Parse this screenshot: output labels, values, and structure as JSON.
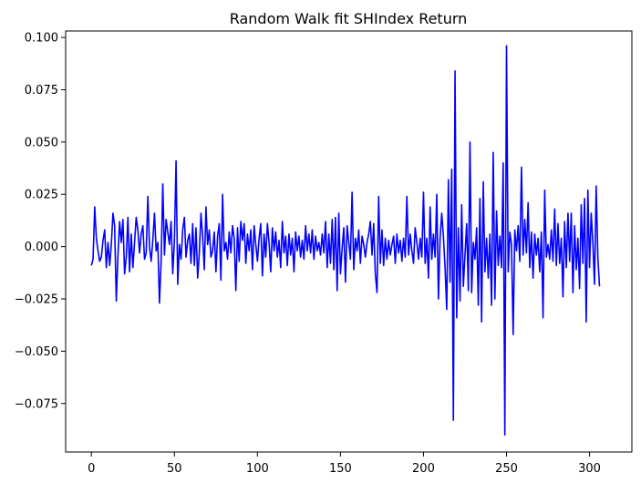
{
  "chart_data": {
    "type": "line",
    "title": "Random Walk fit SHIndex Return",
    "xlabel": "",
    "ylabel": "",
    "xlim": [
      -15.5,
      325.5
    ],
    "ylim": [
      -0.0982,
      0.1031
    ],
    "x_ticks": [
      0,
      50,
      100,
      150,
      200,
      250,
      300
    ],
    "x_tick_labels": [
      "0",
      "50",
      "100",
      "150",
      "200",
      "250",
      "300"
    ],
    "y_ticks": [
      0.1,
      0.075,
      0.05,
      0.025,
      0.0,
      -0.025,
      -0.05,
      -0.075
    ],
    "y_tick_labels": [
      "0.100",
      "0.075",
      "0.050",
      "0.025",
      "0.000",
      "−0.025",
      "−0.050",
      "−0.075"
    ],
    "grid": false,
    "legend": "none",
    "series": [
      {
        "color": "#0000ff",
        "x_start": 0,
        "x_step": 1,
        "values": [
          -0.009,
          -0.006,
          0.019,
          0.004,
          -0.002,
          -0.007,
          -0.005,
          0.003,
          0.008,
          -0.01,
          0.002,
          -0.009,
          0.001,
          0.016,
          0.01,
          -0.026,
          -0.004,
          0.012,
          0.002,
          0.013,
          -0.013,
          -0.005,
          0.014,
          -0.012,
          0.006,
          -0.01,
          0.002,
          0.014,
          0.008,
          -0.003,
          0.006,
          0.01,
          -0.006,
          -0.003,
          0.024,
          0.0,
          -0.007,
          0.003,
          0.016,
          -0.002,
          0.002,
          -0.027,
          -0.007,
          0.03,
          -0.004,
          0.013,
          0.007,
          0.001,
          0.012,
          -0.013,
          0.003,
          0.041,
          -0.018,
          0.001,
          -0.006,
          0.008,
          0.014,
          -0.005,
          0.003,
          0.006,
          -0.008,
          0.011,
          -0.009,
          0.009,
          -0.015,
          -0.003,
          0.016,
          0.005,
          -0.011,
          0.019,
          0.001,
          0.008,
          -0.005,
          -0.002,
          0.007,
          -0.012,
          0.005,
          0.011,
          -0.016,
          0.025,
          -0.002,
          0.002,
          -0.006,
          0.007,
          -0.003,
          0.01,
          0.004,
          -0.021,
          0.009,
          -0.007,
          0.012,
          0.003,
          0.011,
          -0.008,
          0.006,
          -0.002,
          0.008,
          -0.011,
          0.01,
          0.001,
          -0.007,
          0.004,
          0.011,
          -0.014,
          0.006,
          -0.005,
          0.011,
          0.002,
          -0.012,
          0.009,
          -0.002,
          0.007,
          -0.005,
          0.003,
          -0.01,
          0.012,
          -0.003,
          0.005,
          -0.009,
          0.006,
          -0.004,
          0.004,
          -0.012,
          0.007,
          -0.002,
          0.005,
          -0.005,
          0.003,
          -0.006,
          0.01,
          -0.002,
          0.006,
          -0.003,
          0.008,
          -0.006,
          0.005,
          -0.002,
          0.002,
          -0.004,
          0.006,
          -0.003,
          0.012,
          -0.01,
          0.006,
          -0.008,
          0.013,
          -0.011,
          0.014,
          -0.021,
          0.016,
          -0.013,
          -0.001,
          0.009,
          -0.017,
          0.01,
          0.002,
          -0.006,
          0.026,
          -0.011,
          0.004,
          -0.002,
          0.008,
          -0.008,
          0.005,
          0.001,
          -0.005,
          0.002,
          0.006,
          0.012,
          -0.004,
          0.011,
          -0.013,
          -0.022,
          0.024,
          -0.008,
          0.008,
          -0.009,
          0.004,
          -0.006,
          0.003,
          -0.004,
          0.001,
          0.005,
          -0.008,
          0.006,
          -0.003,
          0.003,
          -0.007,
          0.004,
          -0.005,
          0.024,
          -0.004,
          0.006,
          -0.002,
          -0.008,
          0.009,
          0.002,
          -0.006,
          0.004,
          -0.005,
          0.026,
          -0.008,
          0.004,
          -0.015,
          0.019,
          -0.006,
          0.006,
          -0.005,
          0.025,
          -0.025,
          0.004,
          0.016,
          0.005,
          -0.01,
          -0.03,
          0.032,
          -0.017,
          0.037,
          -0.083,
          0.084,
          -0.034,
          0.009,
          -0.026,
          0.02,
          -0.019,
          -0.004,
          0.011,
          -0.021,
          0.05,
          -0.022,
          0.002,
          -0.006,
          0.009,
          -0.028,
          0.023,
          -0.036,
          0.031,
          -0.012,
          0.004,
          -0.015,
          0.006,
          -0.028,
          0.045,
          -0.025,
          0.017,
          -0.009,
          0.005,
          -0.01,
          0.04,
          -0.09,
          0.096,
          -0.012,
          0.007,
          0.001,
          -0.042,
          0.008,
          -0.002,
          0.01,
          -0.007,
          0.038,
          -0.004,
          0.013,
          -0.003,
          0.021,
          -0.01,
          0.007,
          -0.015,
          0.006,
          -0.004,
          0.004,
          -0.012,
          0.007,
          -0.034,
          0.027,
          -0.005,
          0.001,
          -0.006,
          0.008,
          -0.007,
          0.018,
          -0.009,
          0.011,
          -0.008,
          0.004,
          -0.024,
          0.012,
          -0.01,
          0.016,
          -0.007,
          0.016,
          -0.022,
          0.01,
          -0.011,
          0.004,
          -0.02,
          0.02,
          -0.008,
          0.023,
          -0.036,
          0.027,
          -0.01,
          0.016,
          0.002,
          -0.018,
          0.029,
          -0.005,
          -0.019
        ]
      }
    ]
  }
}
